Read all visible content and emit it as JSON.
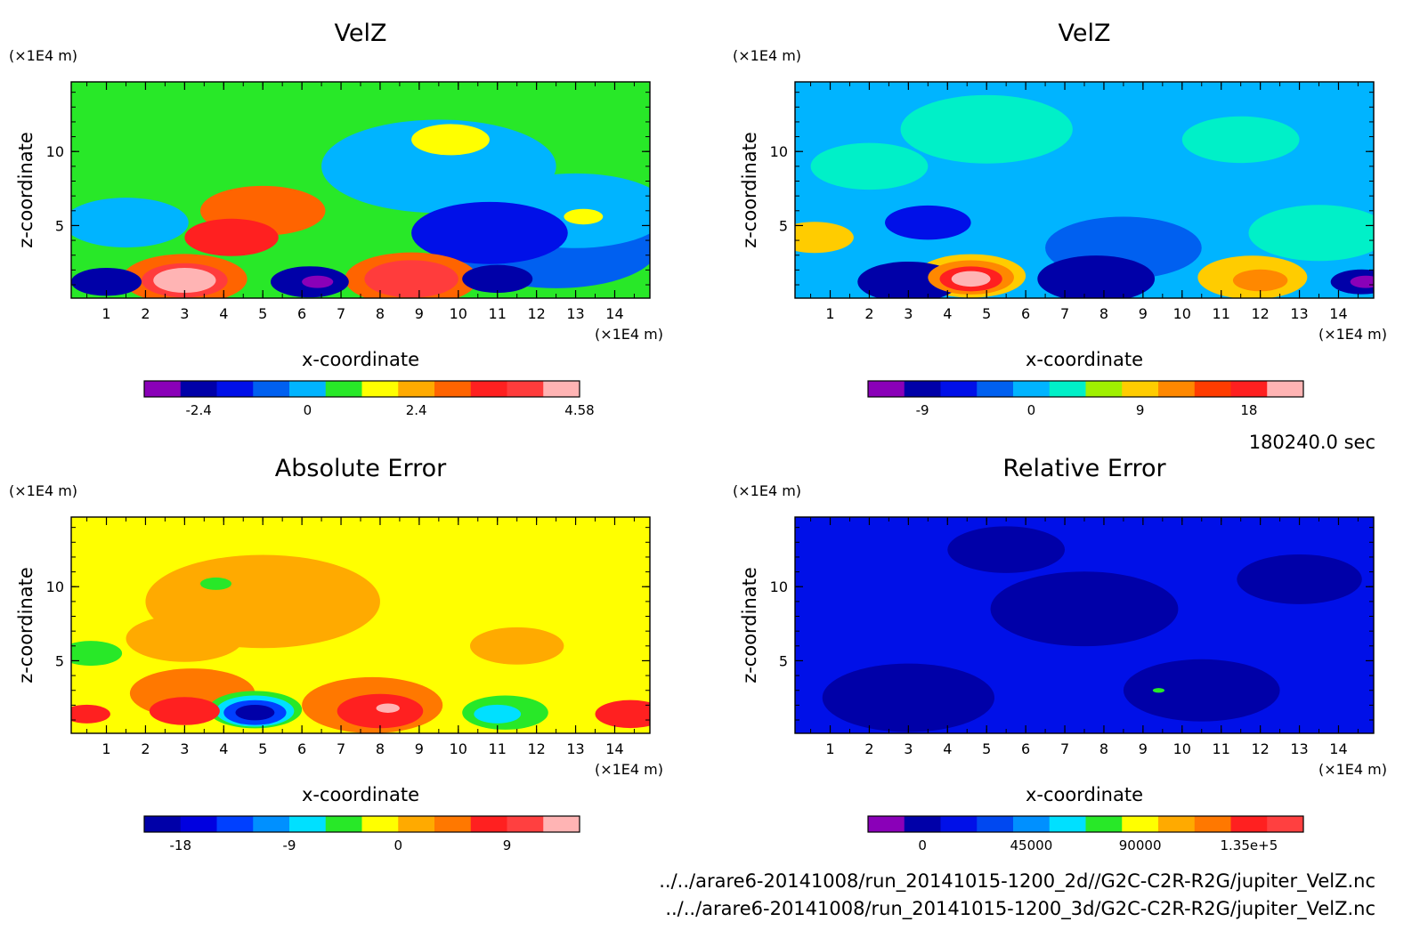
{
  "chart_data": [
    {
      "type": "heatmap",
      "title": "VelZ",
      "xlabel": "x-coordinate",
      "ylabel": "z-coordinate",
      "x_unit": "(×1E4 m)",
      "y_unit": "(×1E4 m)",
      "xlim": [
        0.1,
        14.9
      ],
      "ylim": [
        0.1,
        14.7
      ],
      "x_ticks": [
        1,
        2,
        3,
        4,
        5,
        6,
        7,
        8,
        9,
        10,
        11,
        12,
        13,
        14
      ],
      "y_ticks": [
        5,
        10
      ],
      "colorbar": {
        "colors": [
          "#8a00b8",
          "#0000a8",
          "#0010e8",
          "#0060f0",
          "#00b4ff",
          "#28e828",
          "#ffff00",
          "#ffaa00",
          "#ff6400",
          "#ff2020",
          "#ff3c3c",
          "#ffb4b4"
        ],
        "ticks": [
          "-2.4",
          "0",
          "2.4",
          "4.58"
        ],
        "tick_pos": [
          1.5,
          4.5,
          7.5,
          12
        ],
        "n_levels": 12
      },
      "background_level": 5,
      "features": [
        {
          "x": 3.0,
          "z": 1.3,
          "r": 0.8,
          "level": 11
        },
        {
          "x": 3.0,
          "z": 1.3,
          "r": 1.1,
          "level": 10
        },
        {
          "x": 3.0,
          "z": 1.4,
          "r": 1.6,
          "level": 8
        },
        {
          "x": 4.2,
          "z": 4.2,
          "r": 1.2,
          "level": 9
        },
        {
          "x": 5.0,
          "z": 6.0,
          "r": 1.6,
          "level": 8
        },
        {
          "x": 8.8,
          "z": 1.4,
          "r": 1.2,
          "level": 10
        },
        {
          "x": 8.8,
          "z": 1.4,
          "r": 1.7,
          "level": 8
        },
        {
          "x": 1.0,
          "z": 1.2,
          "r": 0.9,
          "level": 1
        },
        {
          "x": 6.2,
          "z": 1.2,
          "r": 1.0,
          "level": 1
        },
        {
          "x": 6.4,
          "z": 1.2,
          "r": 0.4,
          "level": 0
        },
        {
          "x": 11.0,
          "z": 1.4,
          "r": 0.9,
          "level": 1
        },
        {
          "x": 10.8,
          "z": 4.5,
          "r": 2.0,
          "level": 2
        },
        {
          "x": 12.5,
          "z": 3.5,
          "r": 2.6,
          "level": 3
        },
        {
          "x": 9.5,
          "z": 9.0,
          "r": 3.0,
          "level": 4
        },
        {
          "x": 13.0,
          "z": 6.0,
          "r": 2.4,
          "level": 4
        },
        {
          "x": 1.5,
          "z": 5.2,
          "r": 1.6,
          "level": 4
        },
        {
          "x": 9.8,
          "z": 10.8,
          "r": 1.0,
          "level": 6
        },
        {
          "x": 13.2,
          "z": 5.6,
          "r": 0.5,
          "level": 6
        }
      ]
    },
    {
      "type": "heatmap",
      "title": "VelZ",
      "xlabel": "x-coordinate",
      "ylabel": "z-coordinate",
      "x_unit": "(×1E4 m)",
      "y_unit": "(×1E4 m)",
      "xlim": [
        0.1,
        14.9
      ],
      "ylim": [
        0.1,
        14.7
      ],
      "x_ticks": [
        1,
        2,
        3,
        4,
        5,
        6,
        7,
        8,
        9,
        10,
        11,
        12,
        13,
        14
      ],
      "y_ticks": [
        5,
        10
      ],
      "colorbar": {
        "colors": [
          "#8a00b8",
          "#0000a8",
          "#0010e8",
          "#0060f0",
          "#00b4ff",
          "#00f0c8",
          "#a0f000",
          "#ffcc00",
          "#ff8800",
          "#ff3c00",
          "#ff2020",
          "#ffb4b4"
        ],
        "ticks": [
          "-9",
          "0",
          "9",
          "18"
        ],
        "tick_pos": [
          1.5,
          4.5,
          7.5,
          10.5
        ],
        "n_levels": 12
      },
      "background_level": 4,
      "features": [
        {
          "x": 4.6,
          "z": 1.4,
          "r": 0.5,
          "level": 11
        },
        {
          "x": 4.6,
          "z": 1.4,
          "r": 0.8,
          "level": 10
        },
        {
          "x": 4.6,
          "z": 1.5,
          "r": 1.1,
          "level": 8
        },
        {
          "x": 4.6,
          "z": 1.6,
          "r": 1.4,
          "level": 7
        },
        {
          "x": 11.8,
          "z": 1.5,
          "r": 1.4,
          "level": 7
        },
        {
          "x": 12.0,
          "z": 1.3,
          "r": 0.7,
          "level": 8
        },
        {
          "x": 0.6,
          "z": 4.2,
          "r": 1.0,
          "level": 7
        },
        {
          "x": 3.0,
          "z": 1.2,
          "r": 1.3,
          "level": 1
        },
        {
          "x": 7.8,
          "z": 1.4,
          "r": 1.5,
          "level": 1
        },
        {
          "x": 14.6,
          "z": 1.2,
          "r": 0.8,
          "level": 1
        },
        {
          "x": 14.7,
          "z": 1.2,
          "r": 0.4,
          "level": 0
        },
        {
          "x": 3.5,
          "z": 5.2,
          "r": 1.1,
          "level": 2
        },
        {
          "x": 8.5,
          "z": 3.5,
          "r": 2.0,
          "level": 3
        },
        {
          "x": 11.5,
          "z": 10.8,
          "r": 1.5,
          "level": 5
        },
        {
          "x": 5.0,
          "z": 11.5,
          "r": 2.2,
          "level": 5
        },
        {
          "x": 2.0,
          "z": 9.0,
          "r": 1.5,
          "level": 5
        },
        {
          "x": 13.5,
          "z": 4.5,
          "r": 1.8,
          "level": 5
        }
      ]
    },
    {
      "type": "heatmap",
      "title": "Absolute Error",
      "xlabel": "x-coordinate",
      "ylabel": "z-coordinate",
      "x_unit": "(×1E4 m)",
      "y_unit": "(×1E4 m)",
      "xlim": [
        0.1,
        14.9
      ],
      "ylim": [
        0.1,
        14.7
      ],
      "x_ticks": [
        1,
        2,
        3,
        4,
        5,
        6,
        7,
        8,
        9,
        10,
        11,
        12,
        13,
        14
      ],
      "y_ticks": [
        5,
        10
      ],
      "colorbar": {
        "colors": [
          "#0000a8",
          "#0000e0",
          "#0040ff",
          "#0090ff",
          "#00e0ff",
          "#28e828",
          "#ffff00",
          "#ffaa00",
          "#ff7800",
          "#ff2020",
          "#ff4040",
          "#ffb4b4"
        ],
        "ticks": [
          "-18",
          "-9",
          "0",
          "9"
        ],
        "tick_pos": [
          1,
          4,
          7,
          10
        ],
        "n_levels": 12
      },
      "background_level": 6,
      "features": [
        {
          "x": 5.0,
          "z": 9.0,
          "r": 3.0,
          "level": 7
        },
        {
          "x": 3.0,
          "z": 6.5,
          "r": 1.5,
          "level": 7
        },
        {
          "x": 11.5,
          "z": 6.0,
          "r": 1.2,
          "level": 7
        },
        {
          "x": 3.2,
          "z": 2.8,
          "r": 1.6,
          "level": 8
        },
        {
          "x": 3.0,
          "z": 1.6,
          "r": 0.9,
          "level": 9
        },
        {
          "x": 7.8,
          "z": 2.0,
          "r": 1.8,
          "level": 8
        },
        {
          "x": 8.0,
          "z": 1.6,
          "r": 1.1,
          "level": 9
        },
        {
          "x": 8.2,
          "z": 1.8,
          "r": 0.3,
          "level": 11
        },
        {
          "x": 14.4,
          "z": 1.4,
          "r": 0.9,
          "level": 9
        },
        {
          "x": 0.5,
          "z": 1.4,
          "r": 0.6,
          "level": 9
        },
        {
          "x": 4.8,
          "z": 1.7,
          "r": 1.2,
          "level": 5
        },
        {
          "x": 4.8,
          "z": 1.6,
          "r": 1.0,
          "level": 4
        },
        {
          "x": 4.8,
          "z": 1.5,
          "r": 0.8,
          "level": 2
        },
        {
          "x": 4.8,
          "z": 1.5,
          "r": 0.5,
          "level": 0
        },
        {
          "x": 11.2,
          "z": 1.5,
          "r": 1.1,
          "level": 5
        },
        {
          "x": 11.0,
          "z": 1.4,
          "r": 0.6,
          "level": 4
        },
        {
          "x": 0.6,
          "z": 5.5,
          "r": 0.8,
          "level": 5
        },
        {
          "x": 3.8,
          "z": 10.2,
          "r": 0.4,
          "level": 5
        }
      ]
    },
    {
      "type": "heatmap",
      "title": "Relative Error",
      "xlabel": "x-coordinate",
      "ylabel": "z-coordinate",
      "x_unit": "(×1E4 m)",
      "y_unit": "(×1E4 m)",
      "xlim": [
        0.1,
        14.9
      ],
      "ylim": [
        0.1,
        14.7
      ],
      "x_ticks": [
        1,
        2,
        3,
        4,
        5,
        6,
        7,
        8,
        9,
        10,
        11,
        12,
        13,
        14
      ],
      "y_ticks": [
        5,
        10
      ],
      "colorbar": {
        "colors": [
          "#8a00b8",
          "#0000a8",
          "#0010e8",
          "#0048f0",
          "#0090ff",
          "#00e0ff",
          "#28e828",
          "#ffff00",
          "#ffaa00",
          "#ff7800",
          "#ff2020",
          "#ff4040"
        ],
        "ticks": [
          "0",
          "45000",
          "90000",
          "1.35e+5"
        ],
        "tick_pos": [
          1.5,
          4.5,
          7.5,
          10.5
        ],
        "n_levels": 12
      },
      "background_level": 2,
      "features": [
        {
          "x": 3.0,
          "z": 2.5,
          "r": 2.2,
          "level": 1
        },
        {
          "x": 7.5,
          "z": 8.5,
          "r": 2.4,
          "level": 1
        },
        {
          "x": 10.5,
          "z": 3.0,
          "r": 2.0,
          "level": 1
        },
        {
          "x": 13.0,
          "z": 10.5,
          "r": 1.6,
          "level": 1
        },
        {
          "x": 5.5,
          "z": 12.5,
          "r": 1.5,
          "level": 1
        },
        {
          "x": 9.4,
          "z": 3.0,
          "r": 0.15,
          "level": 6
        }
      ]
    }
  ],
  "annotations": {
    "time": "180240.0 sec",
    "file_2d": "../../arare6-20141008/run_20141015-1200_2d//G2C-C2R-R2G/jupiter_VelZ.nc",
    "file_3d": "../../arare6-20141008/run_20141015-1200_3d/G2C-C2R-R2G/jupiter_VelZ.nc"
  }
}
